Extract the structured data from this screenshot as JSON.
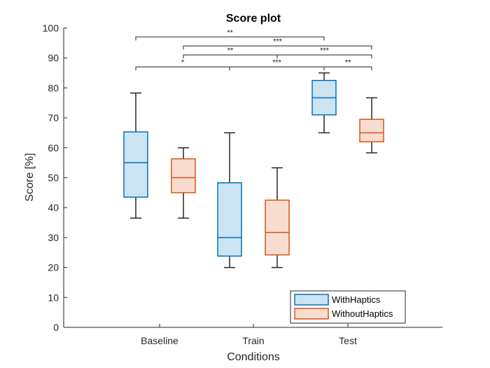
{
  "chart_data": {
    "type": "box",
    "title": "Score plot",
    "xlabel": "Conditions",
    "ylabel": "Score [%]",
    "ylim": [
      0,
      100
    ],
    "yticks": [
      0,
      10,
      20,
      30,
      40,
      50,
      60,
      70,
      80,
      90,
      100
    ],
    "categories": [
      "Baseline",
      "Train",
      "Test"
    ],
    "legend_position": "bottom-right",
    "series": [
      {
        "name": "WithHaptics",
        "edge_color": "#0072BD",
        "fill_color": "#CCE3F2",
        "boxes": [
          {
            "min": 36.5,
            "q1": 43.5,
            "median": 55,
            "q3": 65.3,
            "max": 78.3
          },
          {
            "min": 20,
            "q1": 23.8,
            "median": 30,
            "q3": 48.3,
            "max": 65
          },
          {
            "min": 65,
            "q1": 71,
            "median": 76.7,
            "q3": 82.5,
            "max": 85
          }
        ]
      },
      {
        "name": "WithoutHaptics",
        "edge_color": "#D95319",
        "fill_color": "#F8DCD0",
        "boxes": [
          {
            "min": 36.5,
            "q1": 45,
            "median": 50,
            "q3": 56.3,
            "max": 60
          },
          {
            "min": 20,
            "q1": 24.2,
            "median": 31.7,
            "q3": 42.5,
            "max": 53.3
          },
          {
            "min": 58.3,
            "q1": 62,
            "median": 65,
            "q3": 69.5,
            "max": 76.7
          }
        ]
      }
    ],
    "significance": [
      {
        "label": "**",
        "from": "Baseline",
        "to": "Test",
        "y": 97
      },
      {
        "label": "***",
        "from": "Baseline",
        "to": "Test",
        "y": 94
      },
      {
        "label": "**",
        "from": "Baseline",
        "to": "Train",
        "y": 91
      },
      {
        "label": "***",
        "from": "Train",
        "to": "Test",
        "y": 91
      },
      {
        "label": "*",
        "from": "Baseline",
        "to": "Train",
        "y": 87
      },
      {
        "label": "***",
        "from": "Train",
        "to": "Test",
        "y": 87
      },
      {
        "label": "**",
        "from": "Test",
        "to": "Test",
        "y": 87
      }
    ]
  }
}
